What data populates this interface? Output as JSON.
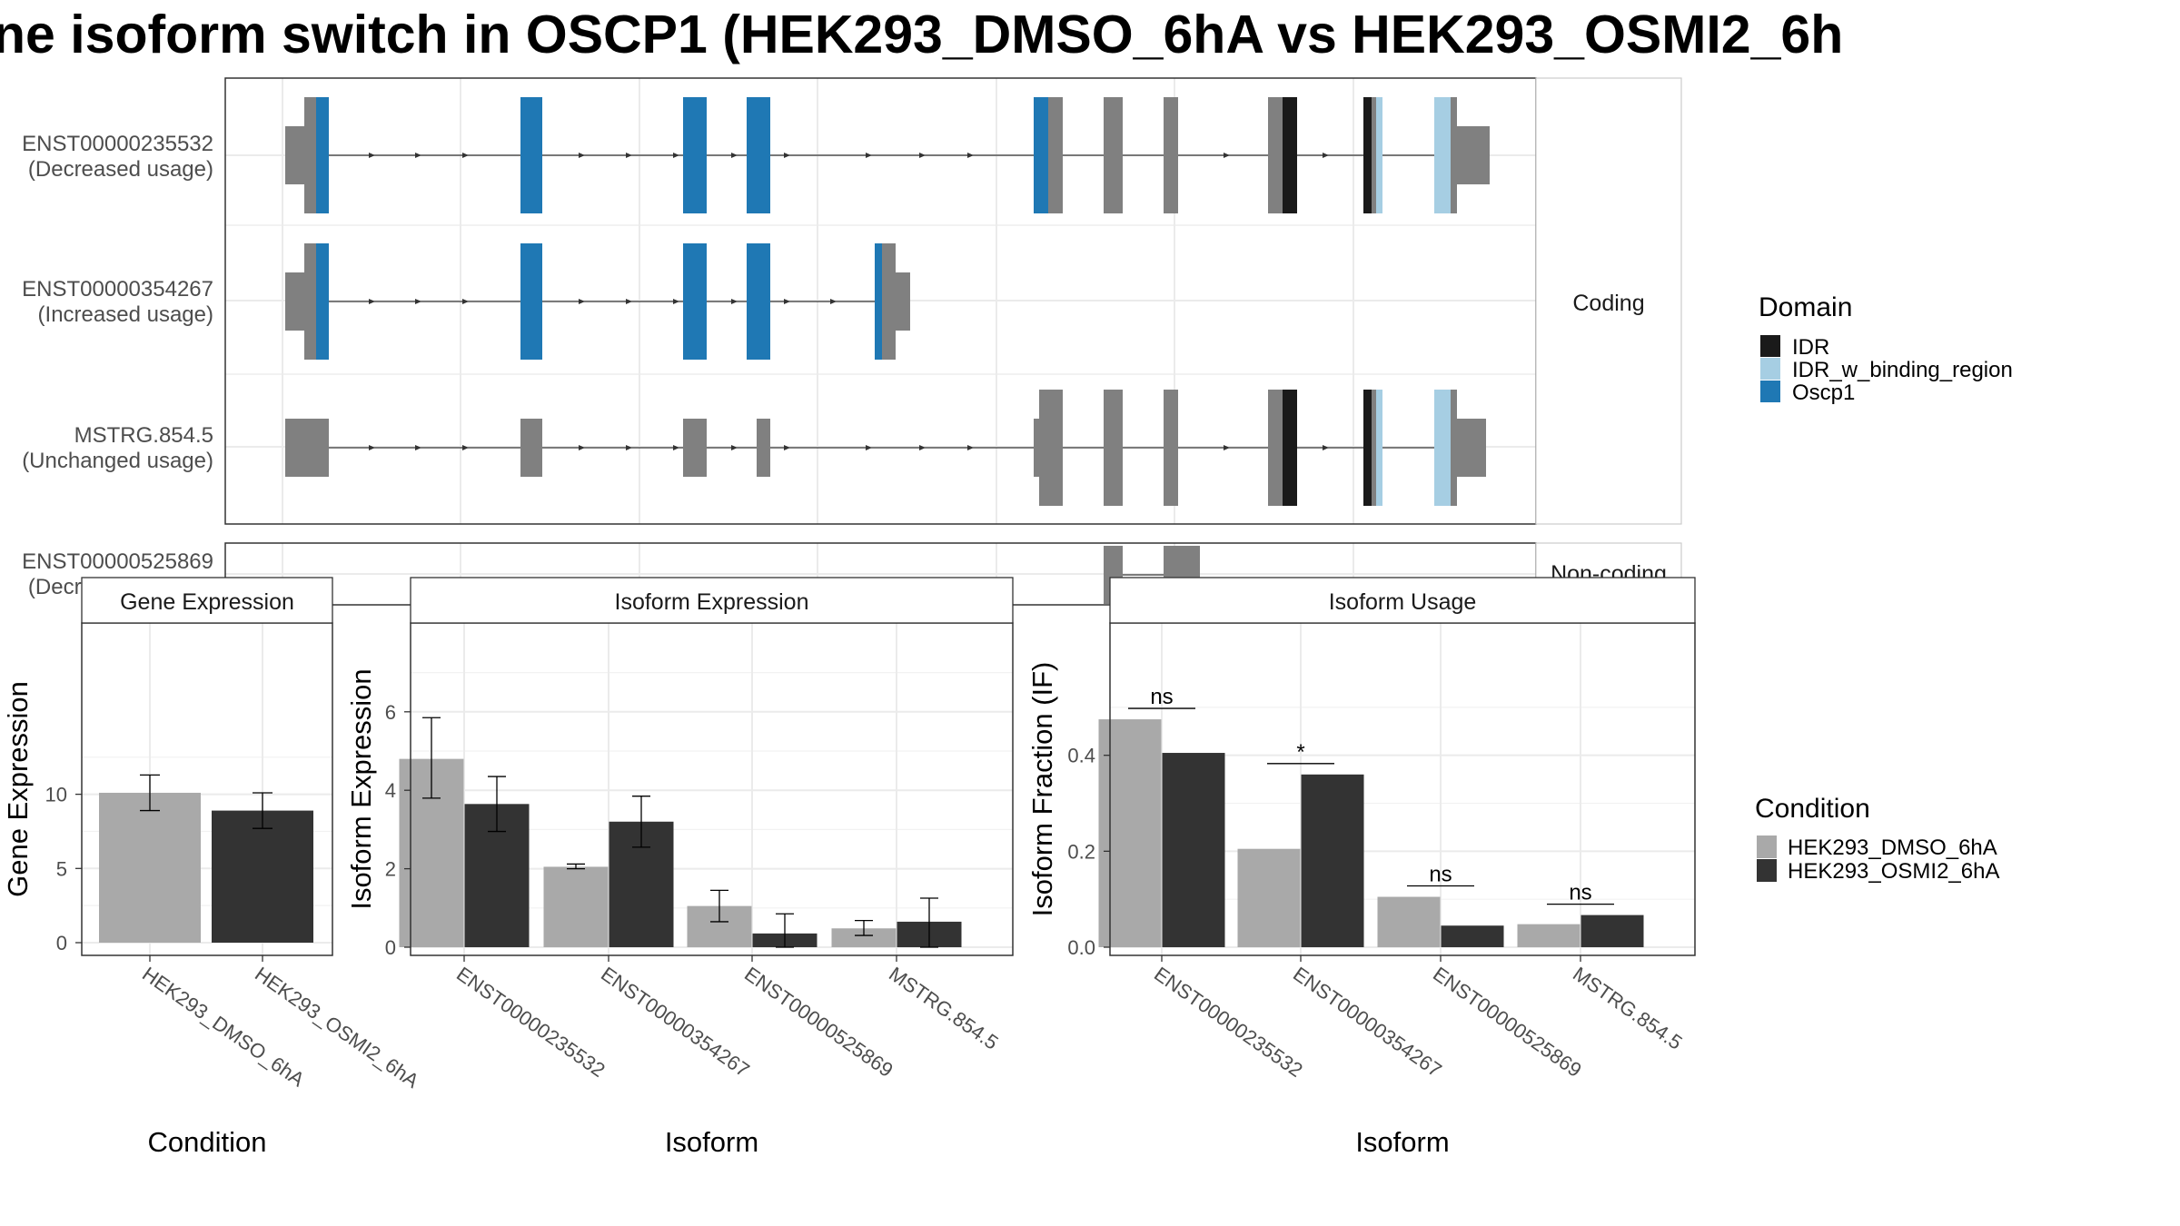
{
  "title": "ne isoform switch in OSCP1 (HEK293_DMSO_6hA vs HEK293_OSMI2_6h",
  "colors": {
    "Oscp1": "#1f78b4",
    "IDR": "#1a1a1a",
    "IDR_w_binding_region": "#a6cee3",
    "exon": "#808080",
    "HEK293_DMSO_6hA": "#a9a9a9",
    "HEK293_OSMI2_6hA": "#333333"
  },
  "structure": {
    "coding_strip": "Coding",
    "noncoding_strip": "Non-coding",
    "isoforms": [
      {
        "id": "ENST00000235532",
        "usage": "(Decreased usage)",
        "group": "coding"
      },
      {
        "id": "ENST00000354267",
        "usage": "(Increased usage)",
        "group": "coding"
      },
      {
        "id": "MSTRG.854.5",
        "usage": "(Unchanged usage)",
        "group": "coding"
      },
      {
        "id": "ENST00000525869",
        "usage": "(Decreased usage)",
        "group": "noncoding"
      }
    ]
  },
  "domain_legend": {
    "title": "Domain",
    "items": [
      {
        "label": "IDR",
        "color": "#1a1a1a"
      },
      {
        "label": "IDR_w_binding_region",
        "color": "#a6cee3"
      },
      {
        "label": "Oscp1",
        "color": "#1f78b4"
      }
    ]
  },
  "condition_legend": {
    "title": "Condition",
    "items": [
      {
        "label": "HEK293_DMSO_6hA",
        "color": "#a9a9a9"
      },
      {
        "label": "HEK293_OSMI2_6hA",
        "color": "#333333"
      }
    ]
  },
  "chart_data": [
    {
      "type": "bar",
      "title": "Gene Expression",
      "xlabel": "Condition",
      "ylabel": "Gene Expression",
      "categories": [
        "HEK293_DMSO_6hA",
        "HEK293_OSMI2_6hA"
      ],
      "values": [
        10.1,
        8.9
      ],
      "errors": [
        [
          8.9,
          11.3
        ],
        [
          7.7,
          10.1
        ]
      ],
      "ylim": [
        0,
        13.5
      ],
      "yticks": [
        0,
        5,
        10
      ],
      "grid": true
    },
    {
      "type": "bar",
      "title": "Isoform Expression",
      "xlabel": "Isoform",
      "ylabel": "Isoform Expression",
      "categories": [
        "ENST00000235532",
        "ENST00000354267",
        "ENST00000525869",
        "MSTRG.854.5"
      ],
      "series": [
        {
          "name": "HEK293_DMSO_6hA",
          "values": [
            4.8,
            2.05,
            1.05,
            0.48
          ],
          "errors": [
            [
              3.8,
              5.85
            ],
            [
              2.0,
              2.12
            ],
            [
              0.65,
              1.45
            ],
            [
              0.3,
              0.68
            ]
          ]
        },
        {
          "name": "HEK293_OSMI2_6hA",
          "values": [
            3.65,
            3.2,
            0.35,
            0.65
          ],
          "errors": [
            [
              2.95,
              4.35
            ],
            [
              2.55,
              3.85
            ],
            [
              0.0,
              0.85
            ],
            [
              0.0,
              1.25
            ]
          ]
        }
      ],
      "ylim": [
        0,
        7.0
      ],
      "yticks": [
        0,
        2,
        4,
        6
      ],
      "grid": true
    },
    {
      "type": "bar",
      "title": "Isoform Usage",
      "xlabel": "Isoform",
      "ylabel": "Isoform Fraction (IF)",
      "categories": [
        "ENST00000235532",
        "ENST00000354267",
        "ENST00000525869",
        "MSTRG.854.5"
      ],
      "series": [
        {
          "name": "HEK293_DMSO_6hA",
          "values": [
            0.475,
            0.205,
            0.105,
            0.048
          ]
        },
        {
          "name": "HEK293_OSMI2_6hA",
          "values": [
            0.405,
            0.36,
            0.045,
            0.067
          ]
        }
      ],
      "significance": [
        "ns",
        "*",
        "ns",
        "ns"
      ],
      "ylim": [
        0,
        0.565
      ],
      "yticks": [
        "0.0",
        "0.2",
        "0.4"
      ],
      "grid": true
    }
  ]
}
